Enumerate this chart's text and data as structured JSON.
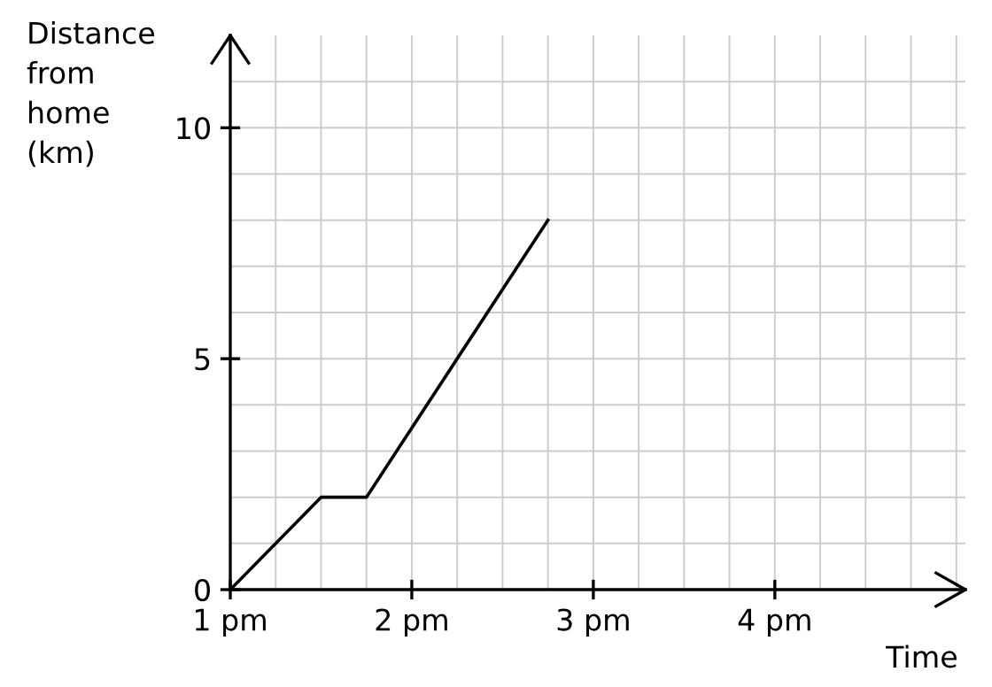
{
  "chart_data": {
    "type": "line",
    "xlabel": "Time",
    "ylabel": "Distance\nfrom\nhome\n(km)",
    "x": [
      1,
      1.5,
      1.75,
      2.75
    ],
    "series": [
      {
        "color": "#000000",
        "values": [
          0,
          2,
          2,
          8
        ]
      }
    ],
    "xlim": [
      1,
      5.05
    ],
    "ylim": [
      0,
      12
    ],
    "xticks": [
      {
        "value": 1,
        "label": "1 pm"
      },
      {
        "value": 2,
        "label": "2 pm"
      },
      {
        "value": 3,
        "label": "3 pm"
      },
      {
        "value": 4,
        "label": "4 pm"
      }
    ],
    "yticks": [
      0,
      5,
      10
    ],
    "grid": true,
    "marker": "none",
    "line_style": "solid"
  }
}
